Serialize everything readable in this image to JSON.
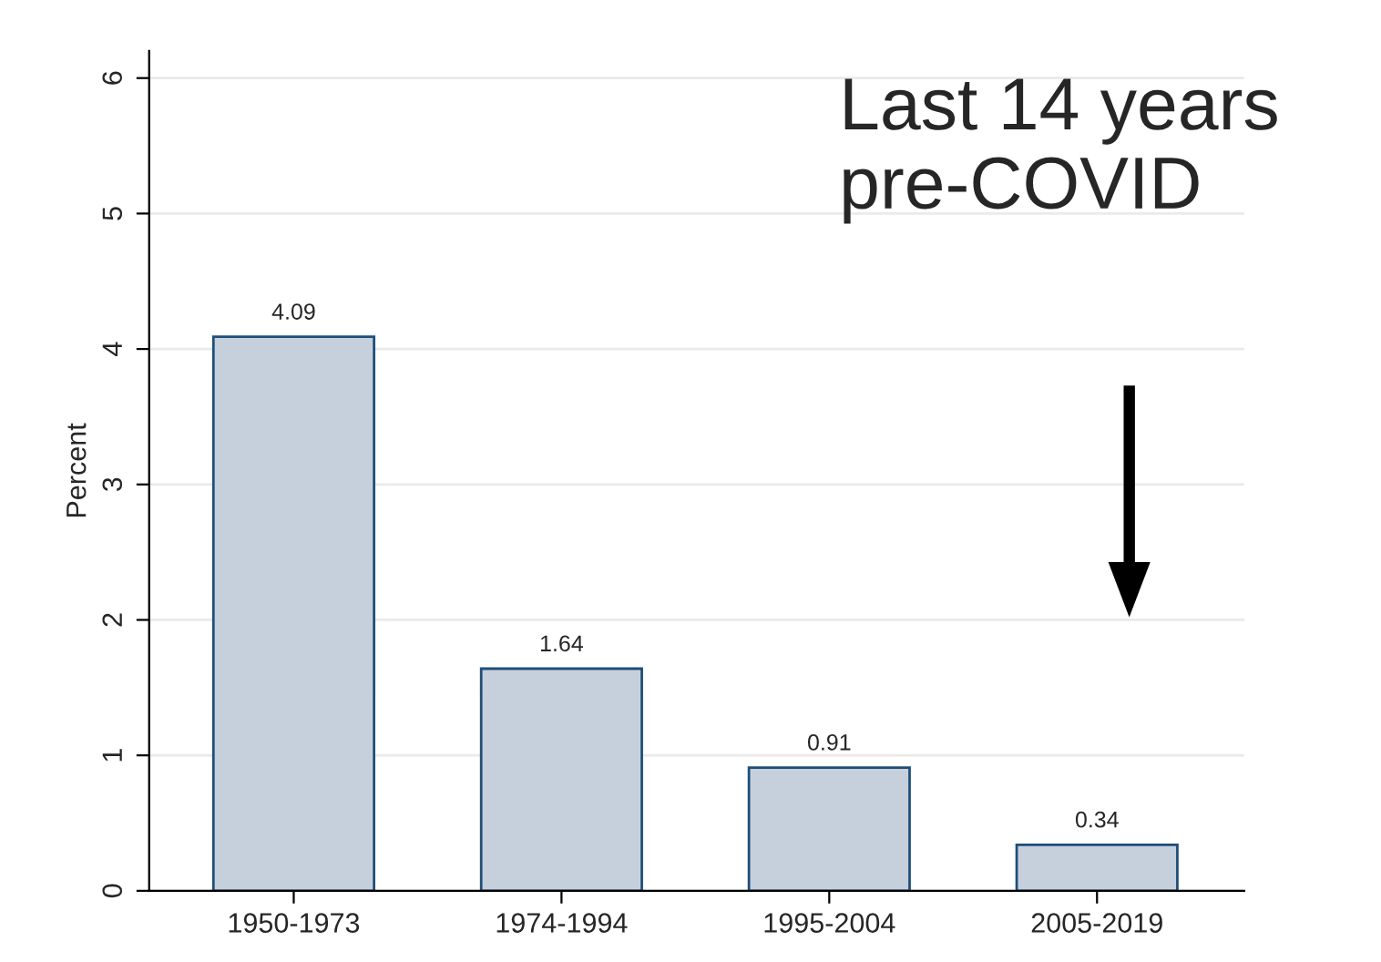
{
  "chart_data": {
    "type": "bar",
    "ylabel": "Percent",
    "categories": [
      "1950-1973",
      "1974-1994",
      "1995-2004",
      "2005-2019"
    ],
    "values": [
      4.09,
      1.64,
      0.91,
      0.34
    ],
    "color": "#c6d0dc",
    "data_labels": true,
    "ylim": [
      0,
      6.2
    ],
    "yticks": [
      0,
      1,
      2,
      3,
      4,
      5,
      6
    ],
    "grid": "y",
    "annotations": [
      "Last 14 years\npre-COVID"
    ]
  }
}
